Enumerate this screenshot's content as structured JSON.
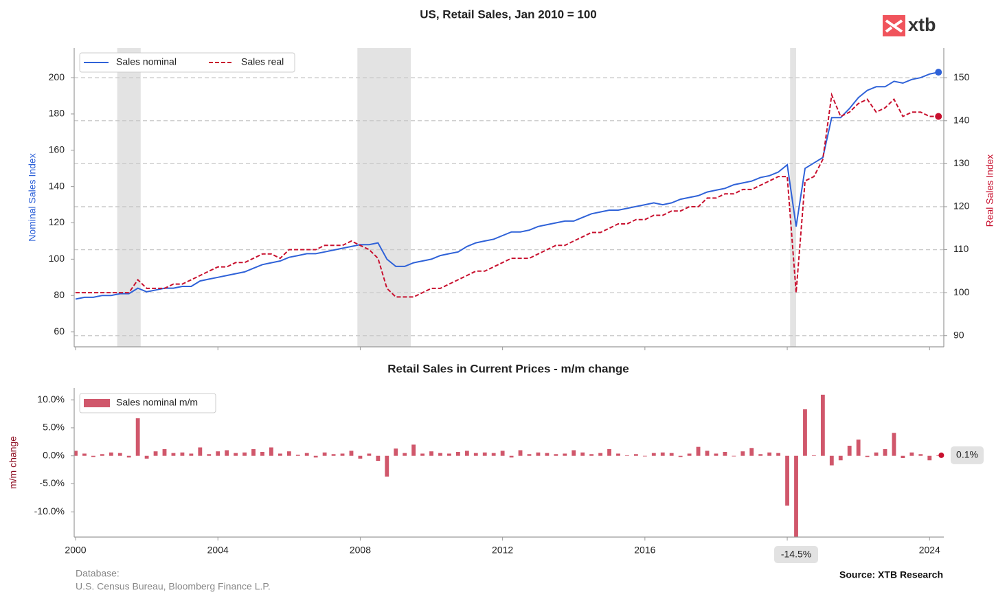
{
  "chart_data": [
    {
      "type": "line",
      "title": "US, Retail Sales, Jan 2010 = 100",
      "y_label": "Nominal Sales Index",
      "y2_label": "Real Sales Index",
      "x": [
        2000,
        2000.25,
        2000.5,
        2000.75,
        2001,
        2001.25,
        2001.5,
        2001.75,
        2002,
        2002.25,
        2002.5,
        2002.75,
        2003,
        2003.25,
        2003.5,
        2003.75,
        2004,
        2004.25,
        2004.5,
        2004.75,
        2005,
        2005.25,
        2005.5,
        2005.75,
        2006,
        2006.25,
        2006.5,
        2006.75,
        2007,
        2007.25,
        2007.5,
        2007.75,
        2008,
        2008.25,
        2008.5,
        2008.75,
        2009,
        2009.25,
        2009.5,
        2009.75,
        2010,
        2010.25,
        2010.5,
        2010.75,
        2011,
        2011.25,
        2011.5,
        2011.75,
        2012,
        2012.25,
        2012.5,
        2012.75,
        2013,
        2013.25,
        2013.5,
        2013.75,
        2014,
        2014.25,
        2014.5,
        2014.75,
        2015,
        2015.25,
        2015.5,
        2015.75,
        2016,
        2016.25,
        2016.5,
        2016.75,
        2017,
        2017.25,
        2017.5,
        2017.75,
        2018,
        2018.25,
        2018.5,
        2018.75,
        2019,
        2019.25,
        2019.5,
        2019.75,
        2020,
        2020.25,
        2020.5,
        2020.75,
        2021,
        2021.25,
        2021.5,
        2021.75,
        2022,
        2022.25,
        2022.5,
        2022.75,
        2023,
        2023.25,
        2023.5,
        2023.75,
        2024,
        2024.25
      ],
      "series": [
        {
          "name": "Sales nominal",
          "color": "#2f62d8",
          "axis": "y",
          "dashed": false,
          "values": [
            78,
            79,
            79,
            80,
            80,
            81,
            81,
            84,
            82,
            83,
            84,
            84,
            85,
            85,
            88,
            89,
            90,
            91,
            92,
            93,
            95,
            97,
            98,
            99,
            101,
            102,
            103,
            103,
            104,
            105,
            106,
            107,
            108,
            108,
            109,
            100,
            96,
            96,
            98,
            99,
            100,
            102,
            103,
            104,
            107,
            109,
            110,
            111,
            113,
            115,
            115,
            116,
            118,
            119,
            120,
            121,
            121,
            123,
            125,
            126,
            127,
            127,
            128,
            129,
            130,
            131,
            130,
            131,
            133,
            134,
            135,
            137,
            138,
            139,
            141,
            142,
            143,
            145,
            146,
            148,
            152,
            118,
            150,
            153,
            156,
            178,
            178,
            183,
            189,
            193,
            195,
            195,
            198,
            197,
            199,
            200,
            202,
            203
          ]
        },
        {
          "name": "Sales real",
          "color": "#c8102e",
          "axis": "y2",
          "dashed": true,
          "values": [
            100,
            100,
            100,
            100,
            100,
            100,
            100,
            103,
            101,
            101,
            101,
            102,
            102,
            103,
            104,
            105,
            106,
            106,
            107,
            107,
            108,
            109,
            109,
            108,
            110,
            110,
            110,
            110,
            111,
            111,
            111,
            112,
            111,
            110,
            108,
            101,
            99,
            99,
            99,
            100,
            101,
            101,
            102,
            103,
            104,
            105,
            105,
            106,
            107,
            108,
            108,
            108,
            109,
            110,
            111,
            111,
            112,
            113,
            114,
            114,
            115,
            116,
            116,
            117,
            117,
            118,
            118,
            119,
            119,
            120,
            120,
            122,
            122,
            123,
            123,
            124,
            124,
            125,
            126,
            127,
            127,
            100,
            126,
            127,
            131,
            146,
            141,
            142,
            144,
            145,
            142,
            143,
            145,
            141,
            142,
            142,
            141,
            141
          ]
        }
      ],
      "ylim": [
        51.7,
        216.3
      ],
      "yticks": [
        60,
        80,
        100,
        120,
        140,
        160,
        180,
        200
      ],
      "y2lim": [
        87.4,
        156.9
      ],
      "y2ticks": [
        90,
        100,
        110,
        120,
        130,
        140,
        150
      ],
      "xlim": [
        2000,
        2024.4
      ],
      "xticks": [
        2000,
        2004,
        2008,
        2012,
        2016,
        2020,
        2024
      ],
      "grid": "y2",
      "legend": "upper-left",
      "shaded_regions": [
        [
          2001.17,
          2001.83
        ],
        [
          2007.92,
          2009.42
        ],
        [
          2020.08,
          2020.25
        ]
      ]
    },
    {
      "type": "bar",
      "title": "Retail Sales in Current Prices - m/m change",
      "y_label": "m/m change",
      "x": [
        2000,
        2000.25,
        2000.5,
        2000.75,
        2001,
        2001.25,
        2001.5,
        2001.75,
        2002,
        2002.25,
        2002.5,
        2002.75,
        2003,
        2003.25,
        2003.5,
        2003.75,
        2004,
        2004.25,
        2004.5,
        2004.75,
        2005,
        2005.25,
        2005.5,
        2005.75,
        2006,
        2006.25,
        2006.5,
        2006.75,
        2007,
        2007.25,
        2007.5,
        2007.75,
        2008,
        2008.25,
        2008.5,
        2008.75,
        2009,
        2009.25,
        2009.5,
        2009.75,
        2010,
        2010.25,
        2010.5,
        2010.75,
        2011,
        2011.25,
        2011.5,
        2011.75,
        2012,
        2012.25,
        2012.5,
        2012.75,
        2013,
        2013.25,
        2013.5,
        2013.75,
        2014,
        2014.25,
        2014.5,
        2014.75,
        2015,
        2015.25,
        2015.5,
        2015.75,
        2016,
        2016.25,
        2016.5,
        2016.75,
        2017,
        2017.25,
        2017.5,
        2017.75,
        2018,
        2018.25,
        2018.5,
        2018.75,
        2019,
        2019.25,
        2019.5,
        2019.75,
        2020,
        2020.25,
        2020.5,
        2020.75,
        2021,
        2021.25,
        2021.5,
        2021.75,
        2022,
        2022.25,
        2022.5,
        2022.75,
        2023,
        2023.25,
        2023.5,
        2023.75,
        2024,
        2024.25
      ],
      "series": [
        {
          "name": "Sales nominal m/m",
          "color": "#d0576b",
          "values": [
            0.9,
            0.4,
            -0.2,
            0.3,
            0.6,
            0.5,
            -0.3,
            6.7,
            -0.5,
            0.8,
            1.2,
            0.5,
            0.6,
            0.4,
            1.5,
            0.3,
            0.8,
            1.0,
            0.5,
            0.6,
            1.2,
            0.7,
            1.5,
            0.4,
            0.8,
            0.2,
            0.5,
            -0.3,
            0.6,
            0.3,
            0.4,
            0.9,
            -0.5,
            0.4,
            -0.9,
            -3.7,
            1.3,
            0.5,
            2.0,
            0.4,
            0.8,
            0.5,
            0.4,
            0.7,
            0.9,
            0.5,
            0.6,
            0.5,
            0.9,
            -0.3,
            1.0,
            0.3,
            0.6,
            0.5,
            0.3,
            0.4,
            1.0,
            0.6,
            0.3,
            0.5,
            1.2,
            0.4,
            0.1,
            0.3,
            -0.1,
            0.5,
            0.6,
            0.5,
            -0.2,
            0.4,
            1.6,
            0.9,
            0.4,
            0.7,
            -0.1,
            0.8,
            1.4,
            0.3,
            0.6,
            0.5,
            -8.9,
            -14.5,
            8.3,
            0.1,
            10.9,
            -1.7,
            -0.8,
            1.8,
            2.9,
            -0.2,
            0.6,
            1.2,
            4.1,
            -0.4,
            0.6,
            0.3,
            -0.8,
            0.1
          ]
        }
      ],
      "ylim": [
        -14.5,
        12.1
      ],
      "yticks": [
        {
          "value": -10,
          "label": "-10.0%"
        },
        {
          "value": -5,
          "label": "-5.0%"
        },
        {
          "value": 0,
          "label": "0.0%"
        },
        {
          "value": 5,
          "label": "5.0%"
        },
        {
          "value": 10,
          "label": "10.0%"
        }
      ],
      "xlim": [
        2000,
        2024.4
      ],
      "xticks": [
        2000,
        2004,
        2008,
        2012,
        2016,
        2020,
        2024
      ],
      "legend": "upper-left",
      "annotations": [
        {
          "x": 2024.33,
          "y": 0.1,
          "text": "0.1%"
        },
        {
          "x": 2020.25,
          "y": -14.5,
          "text": "-14.5%"
        }
      ]
    }
  ],
  "logo": {
    "text": "xtb"
  },
  "footer": {
    "database_label": "Database:",
    "database": "U.S. Census Bureau, Bloomberg Finance L.P.",
    "source": "Source: XTB Research"
  }
}
